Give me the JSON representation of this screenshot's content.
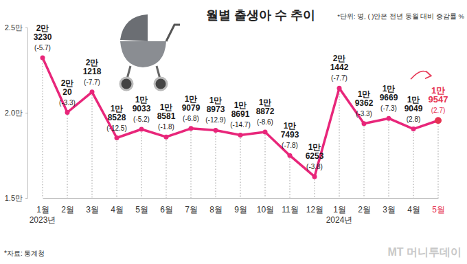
{
  "chart_data": {
    "type": "line",
    "title": "월별 출생아 수 추이",
    "subtitle": "*단위: 명, ( )안은 전년 동월 대비 증감률 %",
    "source": "*자료: 통계청",
    "watermark": "MT 머니투데이",
    "categories": [
      "1월",
      "2월",
      "3월",
      "4월",
      "5월",
      "6월",
      "7월",
      "8월",
      "9월",
      "10월",
      "11월",
      "12월",
      "1월",
      "2월",
      "3월",
      "4월",
      "5월"
    ],
    "x_group_labels": [
      {
        "at": 0,
        "label": "2023년"
      },
      {
        "at": 12,
        "label": "2024년"
      }
    ],
    "values": [
      23230,
      20020,
      21218,
      18528,
      19033,
      18581,
      19079,
      18973,
      18691,
      18872,
      17493,
      16253,
      21442,
      19362,
      19669,
      19049,
      19547
    ],
    "value_labels": [
      "2만\n3230",
      "2만\n20",
      "2만\n1218",
      "1만\n8528",
      "1만\n9033",
      "1만\n8581",
      "1만\n9079",
      "1만\n8973",
      "1만\n8691",
      "1만\n8872",
      "1만\n7493",
      "1만\n6253",
      "2만\n1442",
      "1만\n9362",
      "1만\n9669",
      "1만\n9049",
      "1만\n9547"
    ],
    "yoy_change": [
      -5.7,
      -3.3,
      -7.7,
      -12.5,
      -5.2,
      -1.8,
      -6.8,
      -12.9,
      -14.7,
      -8.6,
      -7.8,
      -3.8,
      -7.7,
      -3.3,
      -7.3,
      2.8,
      2.7
    ],
    "yoy_change_labels": [
      "(-5.7)",
      "(-3.3)",
      "(-7.7)",
      "(-12.5)",
      "(-5.2)",
      "(-1.8)",
      "(-6.8)",
      "(-12.9)",
      "(-14.7)",
      "(-8.6)",
      "(-7.8)",
      "(-3.8)",
      "(-7.7)",
      "(-3.3)",
      "(-7.3)",
      "(2.8)",
      "(2.7)"
    ],
    "color": "#e8267a",
    "colors": [
      "#e8267a",
      "#e8267a",
      "#e8267a",
      "#e8267a",
      "#e8267a",
      "#e8267a",
      "#e8267a",
      "#e8267a",
      "#e8267a",
      "#e8267a",
      "#e8267a",
      "#e8267a",
      "#e8267a",
      "#e8267a",
      "#e8267a",
      "#e8267a",
      "#e63352"
    ],
    "marker": "circle",
    "data_labels": true,
    "grid": false,
    "ylim": [
      15000,
      25000
    ],
    "yticks": [
      {
        "value": 15000,
        "label": "1.5만"
      },
      {
        "value": 20000,
        "label": "2.0만"
      },
      {
        "value": 25000,
        "label": "2.5만"
      }
    ]
  }
}
